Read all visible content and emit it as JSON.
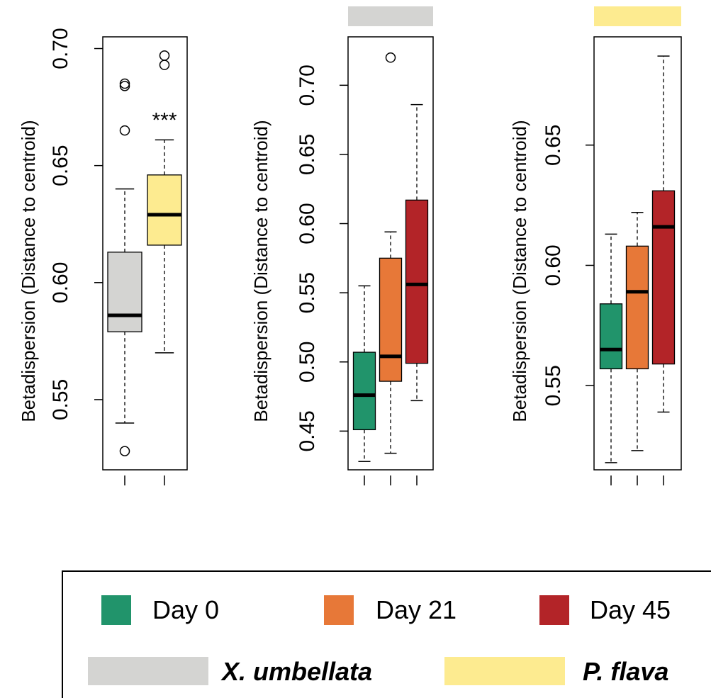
{
  "chart_data": [
    {
      "type": "boxplot",
      "ylabel": "Betadispersion (Distance to centroid)",
      "ylim": [
        0.52,
        0.705
      ],
      "yticks": [
        "0.55",
        "0.60",
        "0.65",
        "0.70"
      ],
      "annotation": "***",
      "boxes": [
        {
          "group": "X. umbellata",
          "color": "#d4d4d2",
          "whisker_low": 0.54,
          "q1": 0.579,
          "median": 0.586,
          "q3": 0.613,
          "whisker_high": 0.64,
          "outliers": [
            0.684,
            0.685,
            0.665,
            0.528
          ]
        },
        {
          "group": "P. flava",
          "color": "#fdeb90",
          "whisker_low": 0.57,
          "q1": 0.616,
          "median": 0.629,
          "q3": 0.646,
          "whisker_high": 0.661,
          "outliers": [
            0.697,
            0.693
          ]
        }
      ]
    },
    {
      "type": "boxplot",
      "ylabel": "Betadispersion (Distance to centroid)",
      "ylim": [
        0.422,
        0.735
      ],
      "yticks": [
        "0.45",
        "0.50",
        "0.55",
        "0.60",
        "0.65",
        "0.70"
      ],
      "header_group": "X. umbellata",
      "header_color": "#d4d4d2",
      "boxes": [
        {
          "group": "Day 0",
          "color": "#21946b",
          "whisker_low": 0.428,
          "q1": 0.451,
          "median": 0.476,
          "q3": 0.507,
          "whisker_high": 0.555,
          "outliers": []
        },
        {
          "group": "Day 21",
          "color": "#e77838",
          "whisker_low": 0.434,
          "q1": 0.486,
          "median": 0.504,
          "q3": 0.575,
          "whisker_high": 0.594,
          "outliers": [
            0.72
          ]
        },
        {
          "group": "Day 45",
          "color": "#b32428",
          "whisker_low": 0.472,
          "q1": 0.499,
          "median": 0.556,
          "q3": 0.617,
          "whisker_high": 0.686,
          "outliers": []
        }
      ]
    },
    {
      "type": "boxplot",
      "ylabel": "Betadispersion (Distance to centroid)",
      "ylim": [
        0.515,
        0.695
      ],
      "yticks": [
        "0.55",
        "0.60",
        "0.65"
      ],
      "header_group": "P. flava",
      "header_color": "#fdeb90",
      "boxes": [
        {
          "group": "Day 0",
          "color": "#21946b",
          "whisker_low": 0.518,
          "q1": 0.557,
          "median": 0.565,
          "q3": 0.584,
          "whisker_high": 0.613,
          "outliers": []
        },
        {
          "group": "Day 21",
          "color": "#e77838",
          "whisker_low": 0.523,
          "q1": 0.557,
          "median": 0.589,
          "q3": 0.608,
          "whisker_high": 0.622,
          "outliers": []
        },
        {
          "group": "Day 45",
          "color": "#b32428",
          "whisker_low": 0.539,
          "q1": 0.559,
          "median": 0.616,
          "q3": 0.631,
          "whisker_high": 0.687,
          "outliers": []
        }
      ]
    }
  ],
  "legend": {
    "items": [
      {
        "label": "Day 0",
        "color": "#21946b",
        "style": "square"
      },
      {
        "label": "Day 21",
        "color": "#e77838",
        "style": "square"
      },
      {
        "label": "Day 45",
        "color": "#b32428",
        "style": "square"
      },
      {
        "label": "X. umbellata",
        "color": "#d4d4d2",
        "style": "bar"
      },
      {
        "label": "P. flava",
        "color": "#fdeb90",
        "style": "bar"
      }
    ]
  }
}
